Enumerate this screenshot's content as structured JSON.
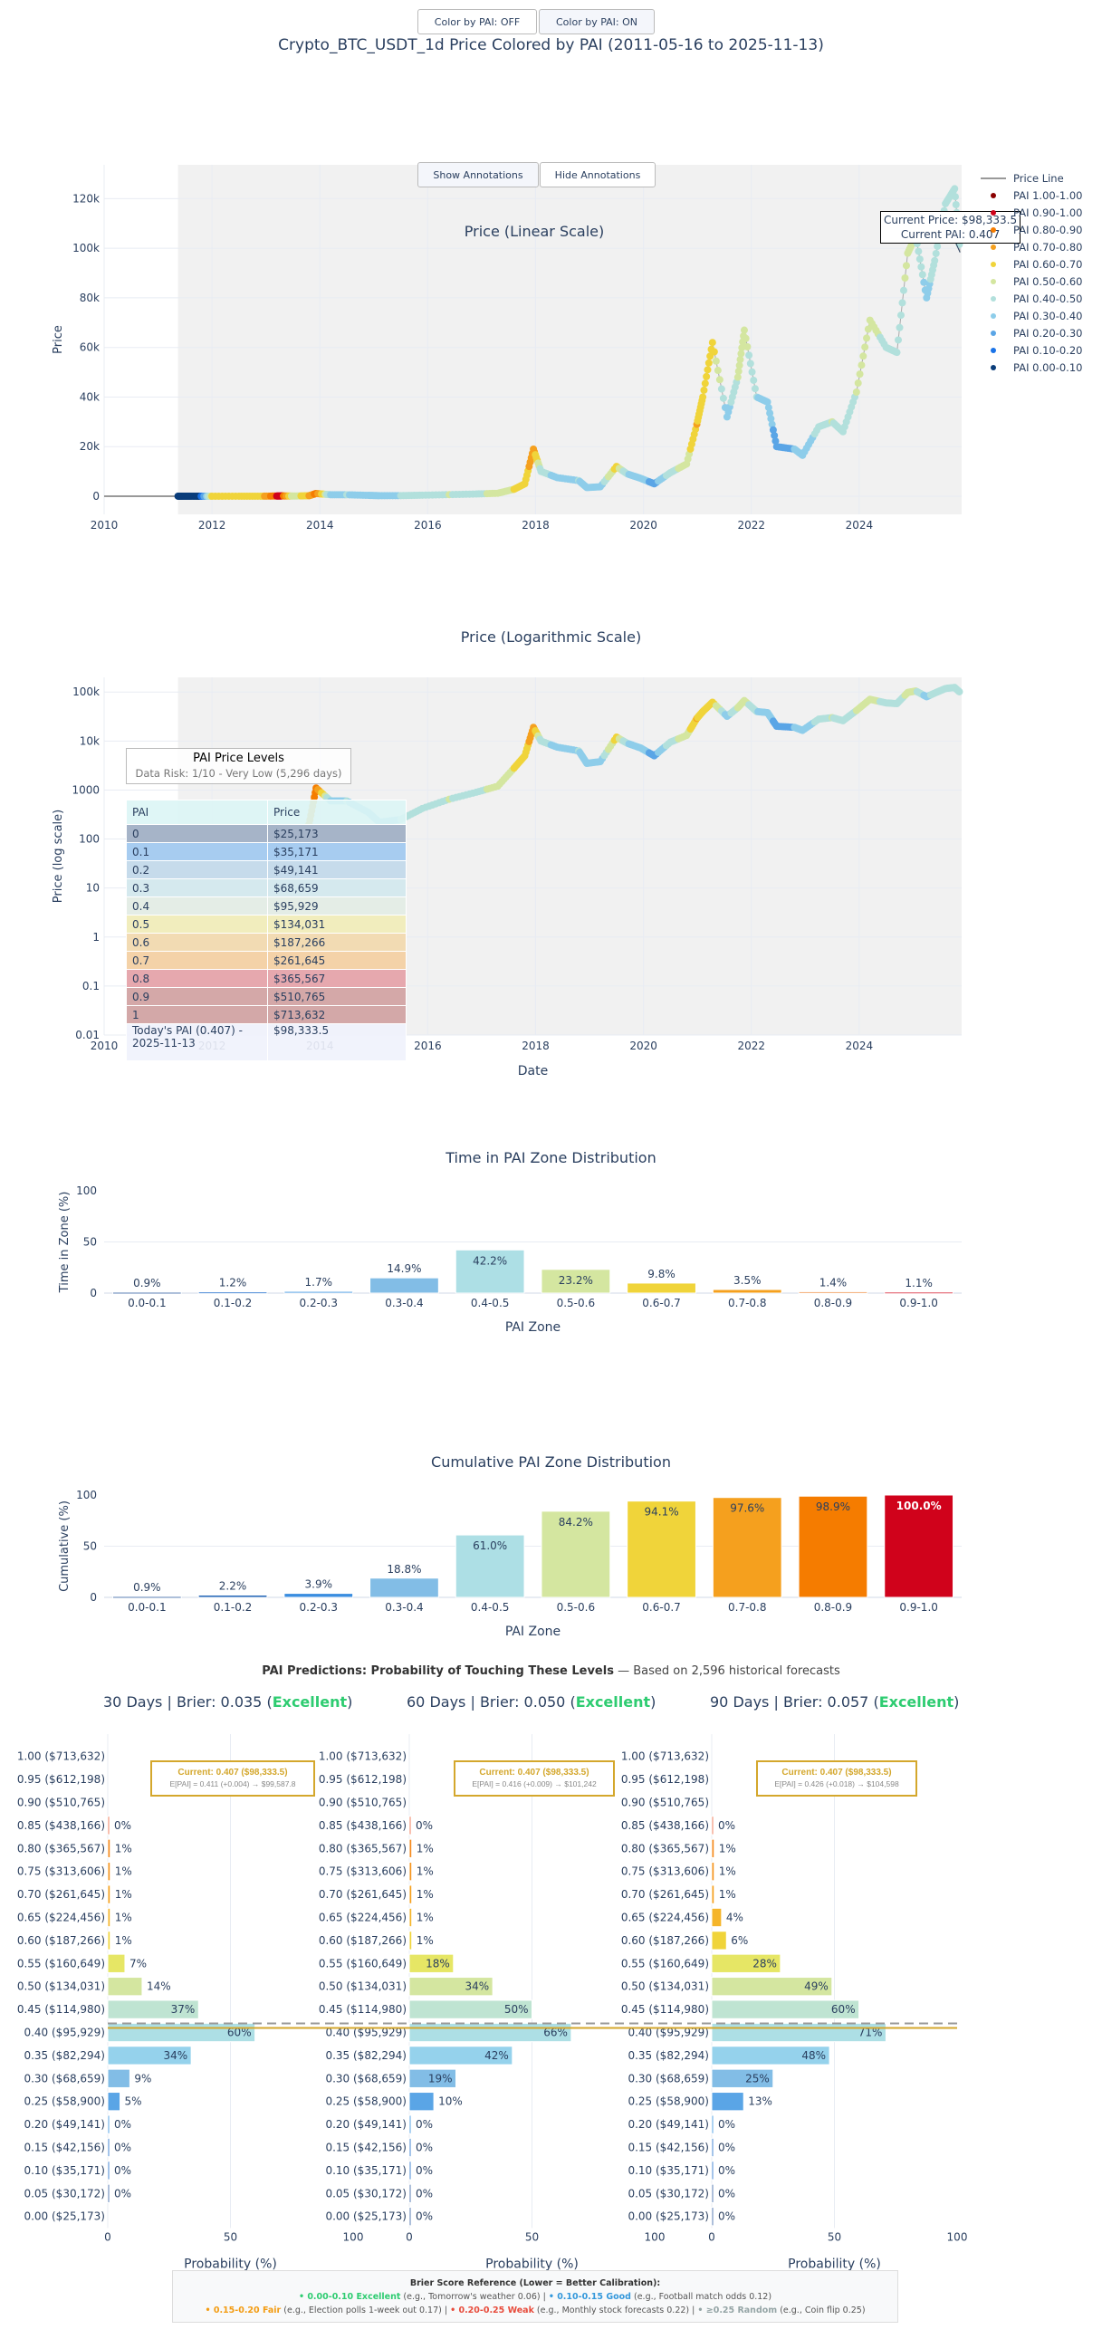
{
  "toggle_buttons": {
    "off": "Color by PAI: OFF",
    "on": "Color by PAI: ON"
  },
  "annotation_buttons": {
    "show": "Show Annotations",
    "hide": "Hide Annotations"
  },
  "main_title": "Crypto_BTC_USDT_1d Price Colored by PAI (2011-05-16 to 2025-11-13)",
  "linear_chart": {
    "title": "Price (Linear Scale)",
    "ylabel": "Price",
    "yticks": [
      "0",
      "20k",
      "40k",
      "60k",
      "80k",
      "100k",
      "120k"
    ],
    "xticks": [
      "2010",
      "2012",
      "2014",
      "2016",
      "2018",
      "2020",
      "2022",
      "2024"
    ],
    "current_price_label": "Current Price: $98,333.5",
    "current_pai_label": "Current PAI: 0.407"
  },
  "legend": {
    "price_line": "Price Line",
    "items": [
      {
        "label": "PAI 1.00-1.00",
        "color": "#8b0000"
      },
      {
        "label": "PAI 0.90-1.00",
        "color": "#d0021b"
      },
      {
        "label": "PAI 0.80-0.90",
        "color": "#f57c00"
      },
      {
        "label": "PAI 0.70-0.80",
        "color": "#f5a01e"
      },
      {
        "label": "PAI 0.60-0.70",
        "color": "#f0d43a"
      },
      {
        "label": "PAI 0.50-0.60",
        "color": "#d4e6a0"
      },
      {
        "label": "PAI 0.40-0.50",
        "color": "#b2e0dc"
      },
      {
        "label": "PAI 0.30-0.40",
        "color": "#8ecdea"
      },
      {
        "label": "PAI 0.20-0.30",
        "color": "#5aa5e6"
      },
      {
        "label": "PAI 0.10-0.20",
        "color": "#1a73e8"
      },
      {
        "label": "PAI 0.00-0.10",
        "color": "#0a3d7a"
      }
    ]
  },
  "log_chart": {
    "title": "Price (Logarithmic Scale)",
    "ylabel": "Price (log scale)",
    "xlabel": "Date",
    "yticks": [
      "0.01",
      "0.1",
      "1",
      "10",
      "100",
      "1000",
      "10k",
      "100k"
    ],
    "xticks": [
      "2010",
      "2012",
      "2014",
      "2016",
      "2018",
      "2020",
      "2022",
      "2024"
    ]
  },
  "pai_levels": {
    "title": "PAI Price Levels",
    "subtitle": "Data Risk: 1/10 - Very Low (5,296 days)",
    "header": [
      "PAI",
      "Price"
    ],
    "rows": [
      {
        "pai": "0",
        "price": "$25,173",
        "bg": "#a6b4c8"
      },
      {
        "pai": "0.1",
        "price": "$35,171",
        "bg": "#a7ccf0"
      },
      {
        "pai": "0.2",
        "price": "$49,141",
        "bg": "#c6dbeb"
      },
      {
        "pai": "0.3",
        "price": "$68,659",
        "bg": "#d5e9ee"
      },
      {
        "pai": "0.4",
        "price": "$95,929",
        "bg": "#e4ede6"
      },
      {
        "pai": "0.5",
        "price": "$134,031",
        "bg": "#f1edbd"
      },
      {
        "pai": "0.6",
        "price": "$187,266",
        "bg": "#f2dbb3"
      },
      {
        "pai": "0.7",
        "price": "$261,645",
        "bg": "#f4d2a8"
      },
      {
        "pai": "0.8",
        "price": "$365,567",
        "bg": "#e6a8ae"
      },
      {
        "pai": "0.9",
        "price": "$510,765",
        "bg": "#d4a8a8"
      },
      {
        "pai": "1",
        "price": "$713,632",
        "bg": "#d3a8a8"
      }
    ],
    "today_label": "Today's PAI (0.407) - 2025-11-13",
    "today_price": "$98,333.5"
  },
  "chart_data": [
    {
      "type": "bar",
      "title": "Time in PAI Zone Distribution",
      "xlabel": "PAI Zone",
      "ylabel": "Time in Zone (%)",
      "ylim": [
        0,
        100
      ],
      "yticks": [
        "0",
        "50",
        "100"
      ],
      "categories": [
        "0.0-0.1",
        "0.1-0.2",
        "0.2-0.3",
        "0.3-0.4",
        "0.4-0.5",
        "0.5-0.6",
        "0.6-0.7",
        "0.7-0.8",
        "0.8-0.9",
        "0.9-1.0"
      ],
      "values": [
        0.9,
        1.2,
        1.7,
        14.9,
        42.2,
        23.2,
        9.8,
        3.5,
        1.4,
        1.1
      ],
      "labels": [
        "0.9%",
        "1.2%",
        "1.7%",
        "14.9%",
        "42.2%",
        "23.2%",
        "9.8%",
        "3.5%",
        "1.4%",
        "1.1%"
      ],
      "colors": [
        "#5b7fb5",
        "#4a8ad6",
        "#5aa5e6",
        "#82bde6",
        "#addfe5",
        "#d4e6a0",
        "#f0d43a",
        "#f5a01e",
        "#f5b07a",
        "#e05060"
      ]
    },
    {
      "type": "bar",
      "title": "Cumulative PAI Zone Distribution",
      "xlabel": "PAI Zone",
      "ylabel": "Cumulative (%)",
      "ylim": [
        0,
        100
      ],
      "yticks": [
        "0",
        "50",
        "100"
      ],
      "categories": [
        "0.0-0.1",
        "0.1-0.2",
        "0.2-0.3",
        "0.3-0.4",
        "0.4-0.5",
        "0.5-0.6",
        "0.6-0.7",
        "0.7-0.8",
        "0.8-0.9",
        "0.9-1.0"
      ],
      "values": [
        0.9,
        2.2,
        3.9,
        18.8,
        61.0,
        84.2,
        94.1,
        97.6,
        98.9,
        100.0
      ],
      "labels": [
        "0.9%",
        "2.2%",
        "3.9%",
        "18.8%",
        "61.0%",
        "84.2%",
        "94.1%",
        "97.6%",
        "98.9%",
        "100.0%"
      ],
      "colors": [
        "#5b7fb5",
        "#1a5fb4",
        "#3a8de0",
        "#82bde6",
        "#addfe5",
        "#d4e6a0",
        "#f0d43a",
        "#f5a01e",
        "#f57c00",
        "#d0021b"
      ]
    },
    {
      "type": "bar",
      "orientation": "horizontal",
      "title": "30 Days | Brier: 0.035 (Excellent)",
      "xlabel": "Probability (%)",
      "xlim": [
        0,
        100
      ],
      "current": "Current: 0.407 ($98,333.5)",
      "expected": "E[PAI] = 0.411 (+0.004) → $99,587.8",
      "categories": [
        "0.00 ($25,173)",
        "0.05 ($30,172)",
        "0.10 ($35,171)",
        "0.15 ($42,156)",
        "0.20 ($49,141)",
        "0.25 ($58,900)",
        "0.30 ($68,659)",
        "0.35 ($82,294)",
        "0.40 ($95,929)",
        "0.45 ($114,980)",
        "0.50 ($134,031)",
        "0.55 ($160,649)",
        "0.60 ($187,266)",
        "0.65 ($224,456)",
        "0.70 ($261,645)",
        "0.75 ($313,606)",
        "0.80 ($365,567)",
        "0.85 ($438,166)",
        "0.90 ($510,765)",
        "0.95 ($612,198)",
        "1.00 ($713,632)"
      ],
      "values": [
        null,
        0,
        0,
        0,
        0,
        5,
        9,
        34,
        60,
        37,
        14,
        7,
        1,
        1,
        1,
        1,
        1,
        0,
        null,
        null,
        null
      ]
    },
    {
      "type": "bar",
      "orientation": "horizontal",
      "title": "60 Days | Brier: 0.050 (Excellent)",
      "xlabel": "Probability (%)",
      "xlim": [
        0,
        100
      ],
      "current": "Current: 0.407 ($98,333.5)",
      "expected": "E[PAI] = 0.416 (+0.009) → $101,242",
      "categories": [
        "0.00 ($25,173)",
        "0.05 ($30,172)",
        "0.10 ($35,171)",
        "0.15 ($42,156)",
        "0.20 ($49,141)",
        "0.25 ($58,900)",
        "0.30 ($68,659)",
        "0.35 ($82,294)",
        "0.40 ($95,929)",
        "0.45 ($114,980)",
        "0.50 ($134,031)",
        "0.55 ($160,649)",
        "0.60 ($187,266)",
        "0.65 ($224,456)",
        "0.70 ($261,645)",
        "0.75 ($313,606)",
        "0.80 ($365,567)",
        "0.85 ($438,166)",
        "0.90 ($510,765)",
        "0.95 ($612,198)",
        "1.00 ($713,632)"
      ],
      "values": [
        0,
        0,
        0,
        0,
        0,
        10,
        19,
        42,
        66,
        50,
        34,
        18,
        1,
        1,
        1,
        1,
        1,
        0,
        null,
        null,
        null
      ]
    },
    {
      "type": "bar",
      "orientation": "horizontal",
      "title": "90 Days | Brier: 0.057 (Excellent)",
      "xlabel": "Probability (%)",
      "xlim": [
        0,
        100
      ],
      "current": "Current: 0.407 ($98,333.5)",
      "expected": "E[PAI] = 0.426 (+0.018) → $104,598",
      "categories": [
        "0.00 ($25,173)",
        "0.05 ($30,172)",
        "0.10 ($35,171)",
        "0.15 ($42,156)",
        "0.20 ($49,141)",
        "0.25 ($58,900)",
        "0.30 ($68,659)",
        "0.35 ($82,294)",
        "0.40 ($95,929)",
        "0.45 ($114,980)",
        "0.50 ($134,031)",
        "0.55 ($160,649)",
        "0.60 ($187,266)",
        "0.65 ($224,456)",
        "0.70 ($261,645)",
        "0.75 ($313,606)",
        "0.80 ($365,567)",
        "0.85 ($438,166)",
        "0.90 ($510,765)",
        "0.95 ($612,198)",
        "1.00 ($713,632)"
      ],
      "values": [
        0,
        0,
        0,
        0,
        0,
        13,
        25,
        48,
        71,
        60,
        49,
        28,
        6,
        4,
        1,
        1,
        1,
        0,
        null,
        null,
        null
      ]
    }
  ],
  "hbar_colors": [
    "#5b7fb5",
    "#5b7fb5",
    "#4a8ad6",
    "#4a8ad6",
    "#5aa5e6",
    "#5aa5e6",
    "#82bde6",
    "#95d2ec",
    "#addfe5",
    "#bfe4d2",
    "#d4e6a0",
    "#e6e665",
    "#f0d43a",
    "#f5b52a",
    "#f5a01e",
    "#f5951e",
    "#f58b1e",
    "#f08060",
    "#e05060",
    "#d0021b",
    "#8b0000"
  ],
  "predictions": {
    "title_bold": "PAI Predictions: Probability of Touching These Levels",
    "title_rest": " — Based on 2,596 historical forecasts",
    "panels": [
      {
        "prefix": "30 Days | Brier: 0.035 (",
        "grade": "Excellent",
        "suffix": ")"
      },
      {
        "prefix": "60 Days | Brier: 0.050 (",
        "grade": "Excellent",
        "suffix": ")"
      },
      {
        "prefix": "90 Days | Brier: 0.057 (",
        "grade": "Excellent",
        "suffix": ")"
      }
    ],
    "xticks": [
      "0",
      "50",
      "100"
    ]
  },
  "brier_reference": {
    "heading": "Brier Score Reference (Lower = Better Calibration):",
    "excellent": "• 0.00-0.10 Excellent",
    "excellent_ex": " (e.g., Tomorrow's weather 0.06) | ",
    "good": "• 0.10-0.15 Good",
    "good_ex": " (e.g., Football match odds 0.12)",
    "fair": "• 0.15-0.20 Fair",
    "fair_ex": " (e.g., Election polls 1-week out 0.17) | ",
    "weak": "• 0.20-0.25 Weak",
    "weak_ex": " (e.g., Monthly stock forecasts 0.22) | ",
    "random": "• ≥0.25 Random",
    "random_ex": " (e.g., Coin flip 0.25)"
  }
}
